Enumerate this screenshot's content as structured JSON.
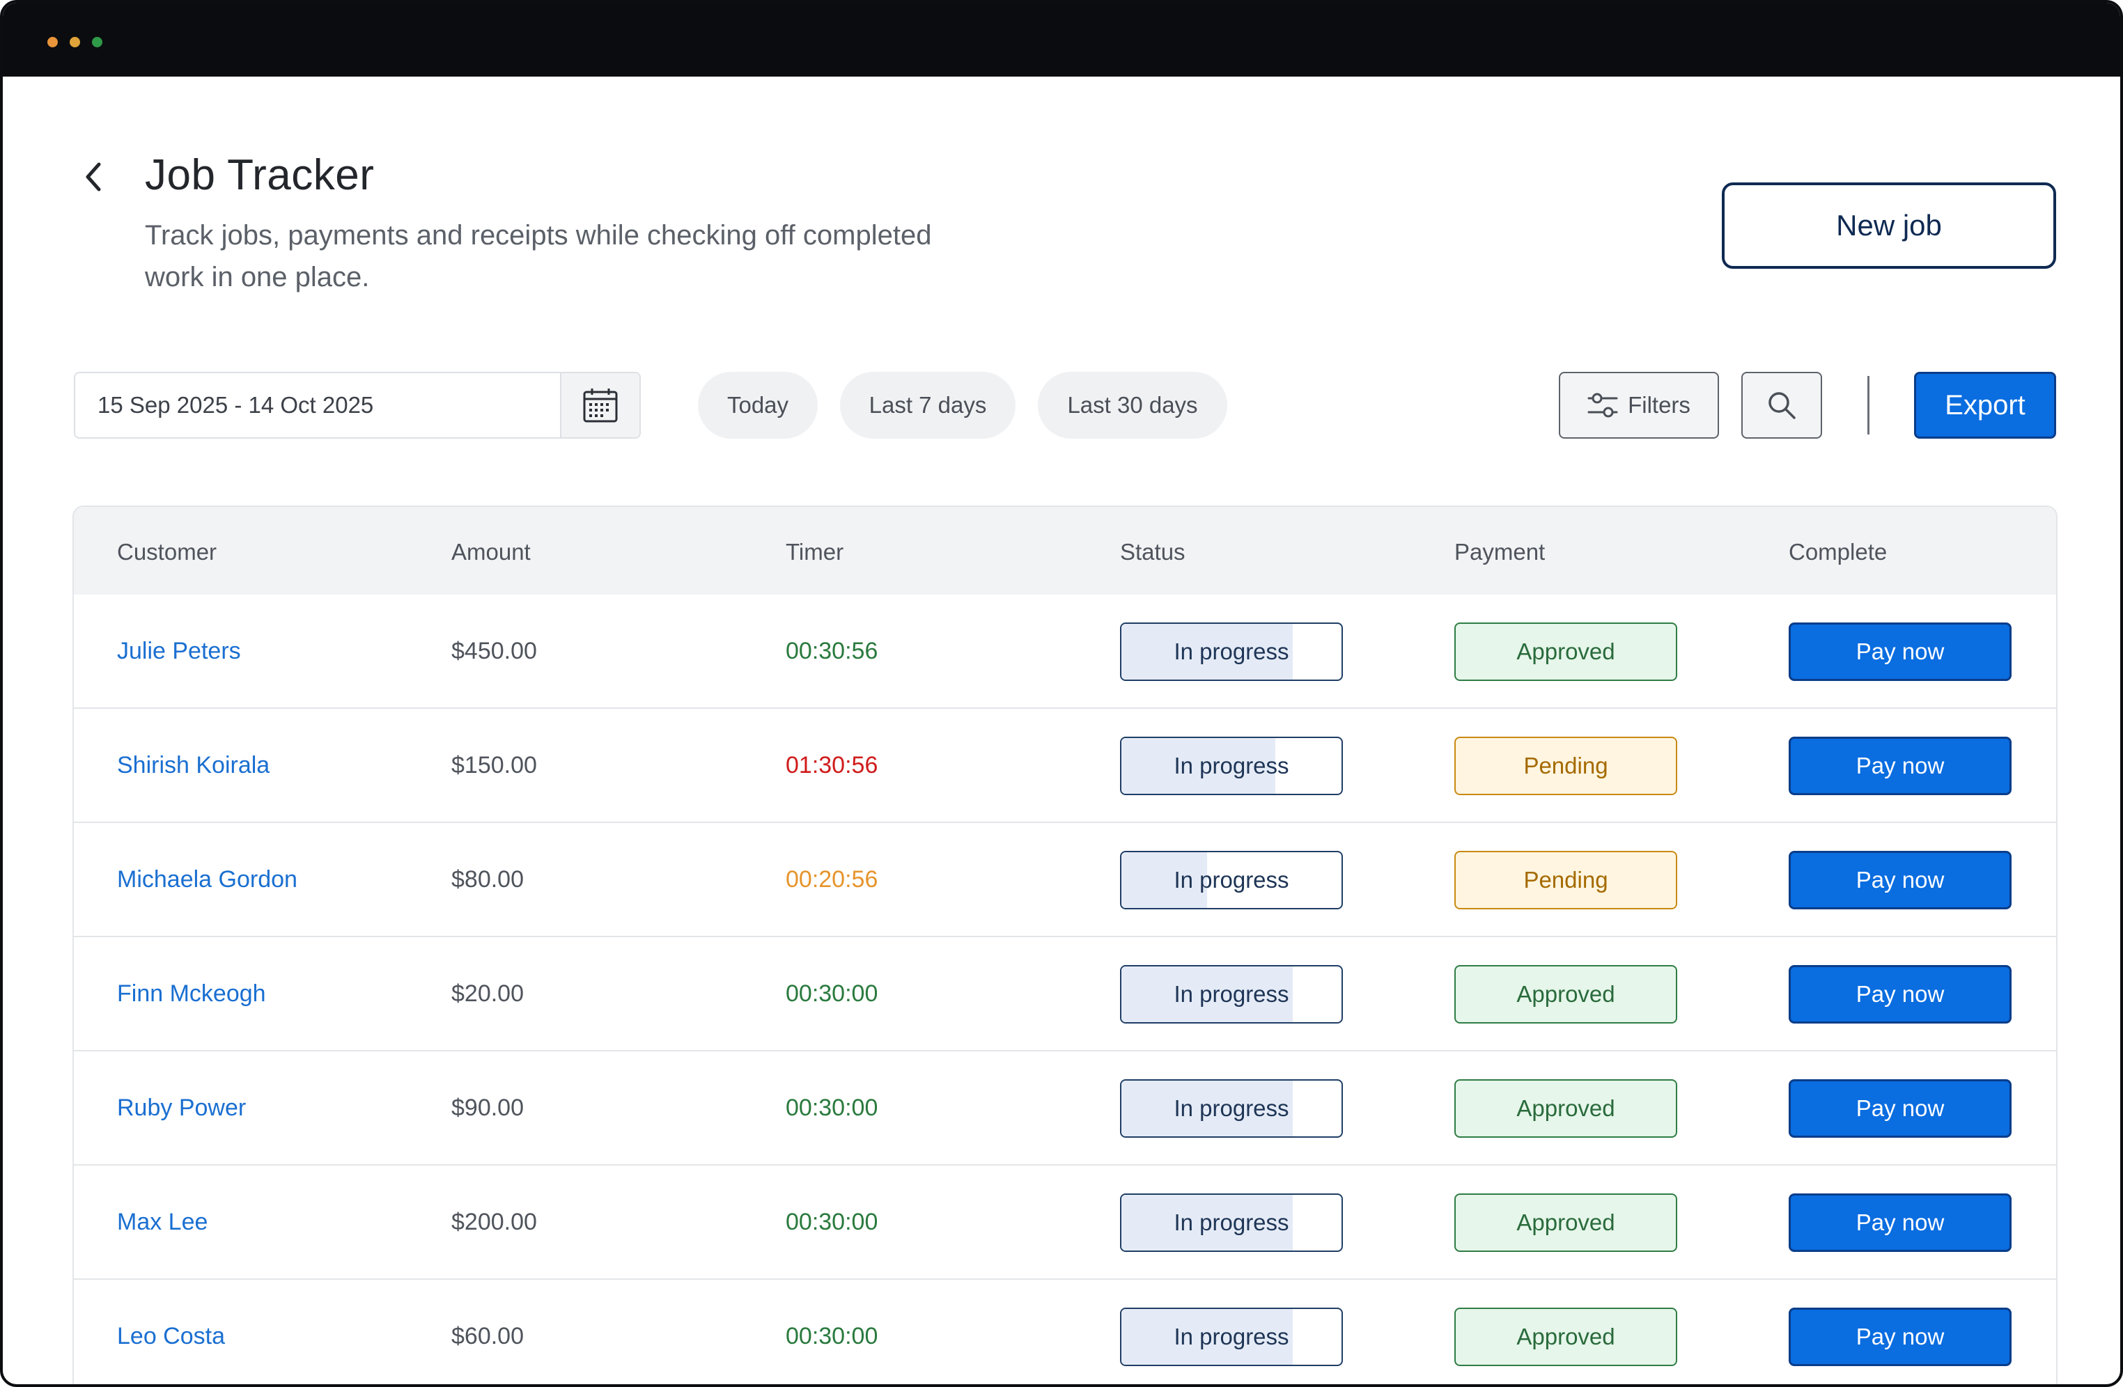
{
  "window": {
    "traffic_lights": [
      "#e8943a",
      "#e0a43a",
      "#2f9a48"
    ]
  },
  "header": {
    "back_icon": "chevron-left-icon",
    "title": "Job Tracker",
    "subtitle": "Track jobs, payments and receipts while checking off completed work in one place.",
    "new_job_label": "New job"
  },
  "toolbar": {
    "date_range_value": "15 Sep 2025 - 14 Oct 2025",
    "calendar_icon": "calendar-icon",
    "quick_ranges": [
      "Today",
      "Last 7 days",
      "Last 30 days"
    ],
    "filters_label": "Filters",
    "filters_icon": "sliders-icon",
    "search_icon": "search-icon",
    "export_label": "Export"
  },
  "table": {
    "columns": [
      "Customer",
      "Amount",
      "Timer",
      "Status",
      "Payment",
      "Complete"
    ],
    "rows": [
      {
        "customer": "Julie Peters",
        "amount": "$450.00",
        "timer": "00:30:56",
        "timer_color": "#2a7a3e",
        "status": "In progress",
        "progress": 0.78,
        "payment": "Approved",
        "payment_state": "approved",
        "action": "Pay now"
      },
      {
        "customer": "Shirish Koirala",
        "amount": "$150.00",
        "timer": "01:30:56",
        "timer_color": "#d01c1c",
        "status": "In progress",
        "progress": 0.7,
        "payment": "Pending",
        "payment_state": "pending",
        "action": "Pay now"
      },
      {
        "customer": "Michaela Gordon",
        "amount": "$80.00",
        "timer": "00:20:56",
        "timer_color": "#e6942c",
        "status": "In progress",
        "progress": 0.39,
        "payment": "Pending",
        "payment_state": "pending",
        "action": "Pay now"
      },
      {
        "customer": "Finn Mckeogh",
        "amount": "$20.00",
        "timer": "00:30:00",
        "timer_color": "#2a7a3e",
        "status": "In progress",
        "progress": 0.78,
        "payment": "Approved",
        "payment_state": "approved",
        "action": "Pay now"
      },
      {
        "customer": "Ruby Power",
        "amount": "$90.00",
        "timer": "00:30:00",
        "timer_color": "#2a7a3e",
        "status": "In progress",
        "progress": 0.78,
        "payment": "Approved",
        "payment_state": "approved",
        "action": "Pay now"
      },
      {
        "customer": "Max Lee",
        "amount": "$200.00",
        "timer": "00:30:00",
        "timer_color": "#2a7a3e",
        "status": "In progress",
        "progress": 0.78,
        "payment": "Approved",
        "payment_state": "approved",
        "action": "Pay now"
      },
      {
        "customer": "Leo Costa",
        "amount": "$60.00",
        "timer": "00:30:00",
        "timer_color": "#2a7a3e",
        "status": "In progress",
        "progress": 0.78,
        "payment": "Approved",
        "payment_state": "approved",
        "action": "Pay now"
      }
    ]
  },
  "colors": {
    "accent": "#0a6de0",
    "link": "#1a6fd1"
  }
}
